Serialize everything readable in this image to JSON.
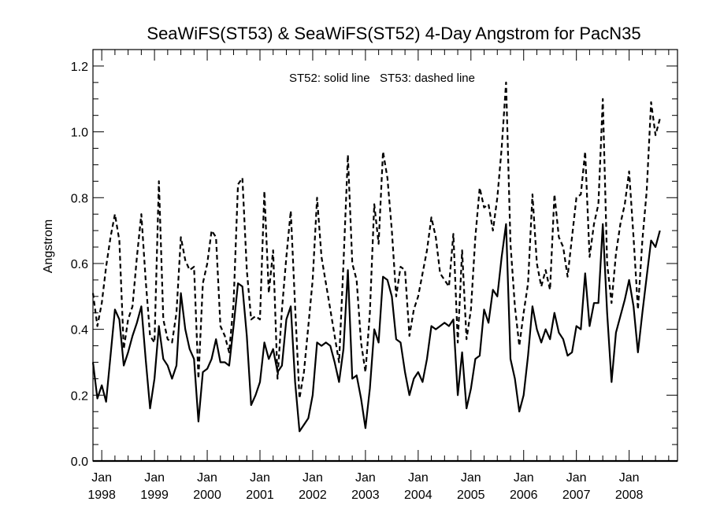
{
  "chart_data": {
    "type": "line",
    "title": "SeaWiFS(ST53) & SeaWiFS(ST52) 4-Day Angstrom for PacN35",
    "ylabel": "Angstrom",
    "xlabel": "",
    "annotation": "ST52: solid line   ST53: dashed line",
    "xlim": [
      "1997-11",
      "2008-12"
    ],
    "ylim": [
      0.0,
      1.25
    ],
    "yticks": [
      "0.0",
      "0.2",
      "0.4",
      "0.6",
      "0.8",
      "1.0",
      "1.2"
    ],
    "xticks": [
      {
        "month": "Jan",
        "year": "1998",
        "date": "1998-01"
      },
      {
        "month": "Jan",
        "year": "1999",
        "date": "1999-01"
      },
      {
        "month": "Jan",
        "year": "2000",
        "date": "2000-01"
      },
      {
        "month": "Jan",
        "year": "2001",
        "date": "2001-01"
      },
      {
        "month": "Jan",
        "year": "2002",
        "date": "2002-01"
      },
      {
        "month": "Jan",
        "year": "2003",
        "date": "2003-01"
      },
      {
        "month": "Jan",
        "year": "2004",
        "date": "2004-01"
      },
      {
        "month": "Jan",
        "year": "2005",
        "date": "2005-01"
      },
      {
        "month": "Jan",
        "year": "2006",
        "date": "2006-01"
      },
      {
        "month": "Jan",
        "year": "2007",
        "date": "2007-01"
      },
      {
        "month": "Jan",
        "year": "2008",
        "date": "2008-01"
      }
    ],
    "grid": false,
    "series": [
      {
        "name": "ST52",
        "style": "solid",
        "color": "#000000",
        "points": [
          [
            "1997-11",
            0.3
          ],
          [
            "1997-12",
            0.19
          ],
          [
            "1998-01",
            0.23
          ],
          [
            "1998-02",
            0.18
          ],
          [
            "1998-03",
            0.32
          ],
          [
            "1998-04",
            0.46
          ],
          [
            "1998-05",
            0.43
          ],
          [
            "1998-06",
            0.29
          ],
          [
            "1998-07",
            0.33
          ],
          [
            "1998-08",
            0.38
          ],
          [
            "1998-09",
            0.42
          ],
          [
            "1998-10",
            0.47
          ],
          [
            "1998-11",
            0.31
          ],
          [
            "1998-12",
            0.16
          ],
          [
            "1999-01",
            0.25
          ],
          [
            "1999-02",
            0.41
          ],
          [
            "1999-03",
            0.31
          ],
          [
            "1999-04",
            0.29
          ],
          [
            "1999-05",
            0.25
          ],
          [
            "1999-06",
            0.29
          ],
          [
            "1999-07",
            0.51
          ],
          [
            "1999-08",
            0.4
          ],
          [
            "1999-09",
            0.34
          ],
          [
            "1999-10",
            0.31
          ],
          [
            "1999-11",
            0.12
          ],
          [
            "1999-12",
            0.27
          ],
          [
            "2000-01",
            0.28
          ],
          [
            "2000-02",
            0.31
          ],
          [
            "2000-03",
            0.37
          ],
          [
            "2000-04",
            0.3
          ],
          [
            "2000-05",
            0.3
          ],
          [
            "2000-06",
            0.29
          ],
          [
            "2000-07",
            0.41
          ],
          [
            "2000-08",
            0.54
          ],
          [
            "2000-09",
            0.53
          ],
          [
            "2000-10",
            0.38
          ],
          [
            "2000-11",
            0.17
          ],
          [
            "2000-12",
            0.2
          ],
          [
            "2001-01",
            0.24
          ],
          [
            "2001-02",
            0.36
          ],
          [
            "2001-03",
            0.31
          ],
          [
            "2001-04",
            0.34
          ],
          [
            "2001-05",
            0.27
          ],
          [
            "2001-06",
            0.29
          ],
          [
            "2001-07",
            0.43
          ],
          [
            "2001-08",
            0.47
          ],
          [
            "2001-09",
            0.24
          ],
          [
            "2001-10",
            0.09
          ],
          [
            "2001-11",
            0.11
          ],
          [
            "2001-12",
            0.13
          ],
          [
            "2002-01",
            0.2
          ],
          [
            "2002-02",
            0.36
          ],
          [
            "2002-03",
            0.35
          ],
          [
            "2002-04",
            0.36
          ],
          [
            "2002-05",
            0.35
          ],
          [
            "2002-06",
            0.3
          ],
          [
            "2002-07",
            0.24
          ],
          [
            "2002-08",
            0.34
          ],
          [
            "2002-09",
            0.58
          ],
          [
            "2002-10",
            0.25
          ],
          [
            "2002-11",
            0.26
          ],
          [
            "2002-12",
            0.19
          ],
          [
            "2003-01",
            0.1
          ],
          [
            "2003-02",
            0.22
          ],
          [
            "2003-03",
            0.4
          ],
          [
            "2003-04",
            0.36
          ],
          [
            "2003-05",
            0.56
          ],
          [
            "2003-06",
            0.55
          ],
          [
            "2003-07",
            0.5
          ],
          [
            "2003-08",
            0.37
          ],
          [
            "2003-09",
            0.36
          ],
          [
            "2003-10",
            0.27
          ],
          [
            "2003-11",
            0.2
          ],
          [
            "2003-12",
            0.25
          ],
          [
            "2004-01",
            0.27
          ],
          [
            "2004-02",
            0.24
          ],
          [
            "2004-03",
            0.31
          ],
          [
            "2004-04",
            0.41
          ],
          [
            "2004-05",
            0.4
          ],
          [
            "2004-06",
            0.41
          ],
          [
            "2004-07",
            0.42
          ],
          [
            "2004-08",
            0.41
          ],
          [
            "2004-09",
            0.43
          ],
          [
            "2004-10",
            0.2
          ],
          [
            "2004-11",
            0.33
          ],
          [
            "2004-12",
            0.16
          ],
          [
            "2005-01",
            0.22
          ],
          [
            "2005-02",
            0.31
          ],
          [
            "2005-03",
            0.32
          ],
          [
            "2005-04",
            0.46
          ],
          [
            "2005-05",
            0.42
          ],
          [
            "2005-06",
            0.52
          ],
          [
            "2005-07",
            0.5
          ],
          [
            "2005-08",
            0.62
          ],
          [
            "2005-09",
            0.72
          ],
          [
            "2005-10",
            0.31
          ],
          [
            "2005-11",
            0.25
          ],
          [
            "2005-12",
            0.15
          ],
          [
            "2006-01",
            0.2
          ],
          [
            "2006-02",
            0.32
          ],
          [
            "2006-03",
            0.47
          ],
          [
            "2006-04",
            0.4
          ],
          [
            "2006-05",
            0.36
          ],
          [
            "2006-06",
            0.4
          ],
          [
            "2006-07",
            0.37
          ],
          [
            "2006-08",
            0.45
          ],
          [
            "2006-09",
            0.39
          ],
          [
            "2006-10",
            0.37
          ],
          [
            "2006-11",
            0.32
          ],
          [
            "2006-12",
            0.33
          ],
          [
            "2007-01",
            0.41
          ],
          [
            "2007-02",
            0.4
          ],
          [
            "2007-03",
            0.57
          ],
          [
            "2007-04",
            0.41
          ],
          [
            "2007-05",
            0.48
          ],
          [
            "2007-06",
            0.48
          ],
          [
            "2007-07",
            0.72
          ],
          [
            "2007-08",
            0.45
          ],
          [
            "2007-09",
            0.24
          ],
          [
            "2007-10",
            0.39
          ],
          [
            "2007-11",
            0.44
          ],
          [
            "2007-12",
            0.49
          ],
          [
            "2008-01",
            0.55
          ],
          [
            "2008-02",
            0.47
          ],
          [
            "2008-03",
            0.33
          ],
          [
            "2008-04",
            0.45
          ],
          [
            "2008-05",
            0.56
          ],
          [
            "2008-06",
            0.67
          ],
          [
            "2008-07",
            0.65
          ],
          [
            "2008-08",
            0.7
          ]
        ]
      },
      {
        "name": "ST53",
        "style": "dashed",
        "color": "#000000",
        "points": [
          [
            "1997-11",
            0.51
          ],
          [
            "1997-12",
            0.41
          ],
          [
            "1998-01",
            0.48
          ],
          [
            "1998-02",
            0.59
          ],
          [
            "1998-03",
            0.68
          ],
          [
            "1998-04",
            0.75
          ],
          [
            "1998-05",
            0.67
          ],
          [
            "1998-06",
            0.34
          ],
          [
            "1998-07",
            0.43
          ],
          [
            "1998-08",
            0.47
          ],
          [
            "1998-09",
            0.62
          ],
          [
            "1998-10",
            0.75
          ],
          [
            "1998-11",
            0.55
          ],
          [
            "1998-12",
            0.38
          ],
          [
            "1999-01",
            0.36
          ],
          [
            "1999-02",
            0.85
          ],
          [
            "1999-03",
            0.43
          ],
          [
            "1999-04",
            0.37
          ],
          [
            "1999-05",
            0.36
          ],
          [
            "1999-06",
            0.45
          ],
          [
            "1999-07",
            0.68
          ],
          [
            "1999-08",
            0.61
          ],
          [
            "1999-09",
            0.58
          ],
          [
            "1999-10",
            0.59
          ],
          [
            "1999-11",
            0.25
          ],
          [
            "1999-12",
            0.54
          ],
          [
            "2000-01",
            0.6
          ],
          [
            "2000-02",
            0.7
          ],
          [
            "2000-03",
            0.68
          ],
          [
            "2000-04",
            0.41
          ],
          [
            "2000-05",
            0.38
          ],
          [
            "2000-06",
            0.33
          ],
          [
            "2000-07",
            0.48
          ],
          [
            "2000-08",
            0.84
          ],
          [
            "2000-09",
            0.86
          ],
          [
            "2000-10",
            0.58
          ],
          [
            "2000-11",
            0.43
          ],
          [
            "2000-12",
            0.44
          ],
          [
            "2001-01",
            0.43
          ],
          [
            "2001-02",
            0.82
          ],
          [
            "2001-03",
            0.51
          ],
          [
            "2001-04",
            0.64
          ],
          [
            "2001-05",
            0.25
          ],
          [
            "2001-06",
            0.46
          ],
          [
            "2001-07",
            0.62
          ],
          [
            "2001-08",
            0.76
          ],
          [
            "2001-09",
            0.47
          ],
          [
            "2001-10",
            0.19
          ],
          [
            "2001-11",
            0.27
          ],
          [
            "2001-12",
            0.41
          ],
          [
            "2002-01",
            0.55
          ],
          [
            "2002-02",
            0.8
          ],
          [
            "2002-03",
            0.62
          ],
          [
            "2002-04",
            0.54
          ],
          [
            "2002-05",
            0.46
          ],
          [
            "2002-06",
            0.38
          ],
          [
            "2002-07",
            0.3
          ],
          [
            "2002-08",
            0.6
          ],
          [
            "2002-09",
            0.93
          ],
          [
            "2002-10",
            0.6
          ],
          [
            "2002-11",
            0.55
          ],
          [
            "2002-12",
            0.36
          ],
          [
            "2003-01",
            0.27
          ],
          [
            "2003-02",
            0.45
          ],
          [
            "2003-03",
            0.78
          ],
          [
            "2003-04",
            0.66
          ],
          [
            "2003-05",
            0.94
          ],
          [
            "2003-06",
            0.86
          ],
          [
            "2003-07",
            0.7
          ],
          [
            "2003-08",
            0.5
          ],
          [
            "2003-09",
            0.59
          ],
          [
            "2003-10",
            0.58
          ],
          [
            "2003-11",
            0.38
          ],
          [
            "2003-12",
            0.46
          ],
          [
            "2004-01",
            0.5
          ],
          [
            "2004-02",
            0.57
          ],
          [
            "2004-03",
            0.64
          ],
          [
            "2004-04",
            0.74
          ],
          [
            "2004-05",
            0.68
          ],
          [
            "2004-06",
            0.57
          ],
          [
            "2004-07",
            0.55
          ],
          [
            "2004-08",
            0.53
          ],
          [
            "2004-09",
            0.69
          ],
          [
            "2004-10",
            0.36
          ],
          [
            "2004-11",
            0.64
          ],
          [
            "2004-12",
            0.37
          ],
          [
            "2005-01",
            0.46
          ],
          [
            "2005-02",
            0.68
          ],
          [
            "2005-03",
            0.83
          ],
          [
            "2005-04",
            0.77
          ],
          [
            "2005-05",
            0.78
          ],
          [
            "2005-06",
            0.7
          ],
          [
            "2005-07",
            0.8
          ],
          [
            "2005-08",
            0.95
          ],
          [
            "2005-09",
            1.15
          ],
          [
            "2005-10",
            0.66
          ],
          [
            "2005-11",
            0.47
          ],
          [
            "2005-12",
            0.35
          ],
          [
            "2006-01",
            0.45
          ],
          [
            "2006-02",
            0.54
          ],
          [
            "2006-03",
            0.81
          ],
          [
            "2006-04",
            0.6
          ],
          [
            "2006-05",
            0.53
          ],
          [
            "2006-06",
            0.58
          ],
          [
            "2006-07",
            0.52
          ],
          [
            "2006-08",
            0.81
          ],
          [
            "2006-09",
            0.68
          ],
          [
            "2006-10",
            0.65
          ],
          [
            "2006-11",
            0.56
          ],
          [
            "2006-12",
            0.68
          ],
          [
            "2007-01",
            0.8
          ],
          [
            "2007-02",
            0.81
          ],
          [
            "2007-03",
            0.94
          ],
          [
            "2007-04",
            0.62
          ],
          [
            "2007-05",
            0.72
          ],
          [
            "2007-06",
            0.78
          ],
          [
            "2007-07",
            1.1
          ],
          [
            "2007-08",
            0.6
          ],
          [
            "2007-09",
            0.48
          ],
          [
            "2007-10",
            0.63
          ],
          [
            "2007-11",
            0.72
          ],
          [
            "2007-12",
            0.78
          ],
          [
            "2008-01",
            0.88
          ],
          [
            "2008-02",
            0.68
          ],
          [
            "2008-03",
            0.46
          ],
          [
            "2008-04",
            0.67
          ],
          [
            "2008-05",
            0.82
          ],
          [
            "2008-06",
            1.09
          ],
          [
            "2008-07",
            0.99
          ],
          [
            "2008-08",
            1.04
          ]
        ]
      }
    ]
  }
}
